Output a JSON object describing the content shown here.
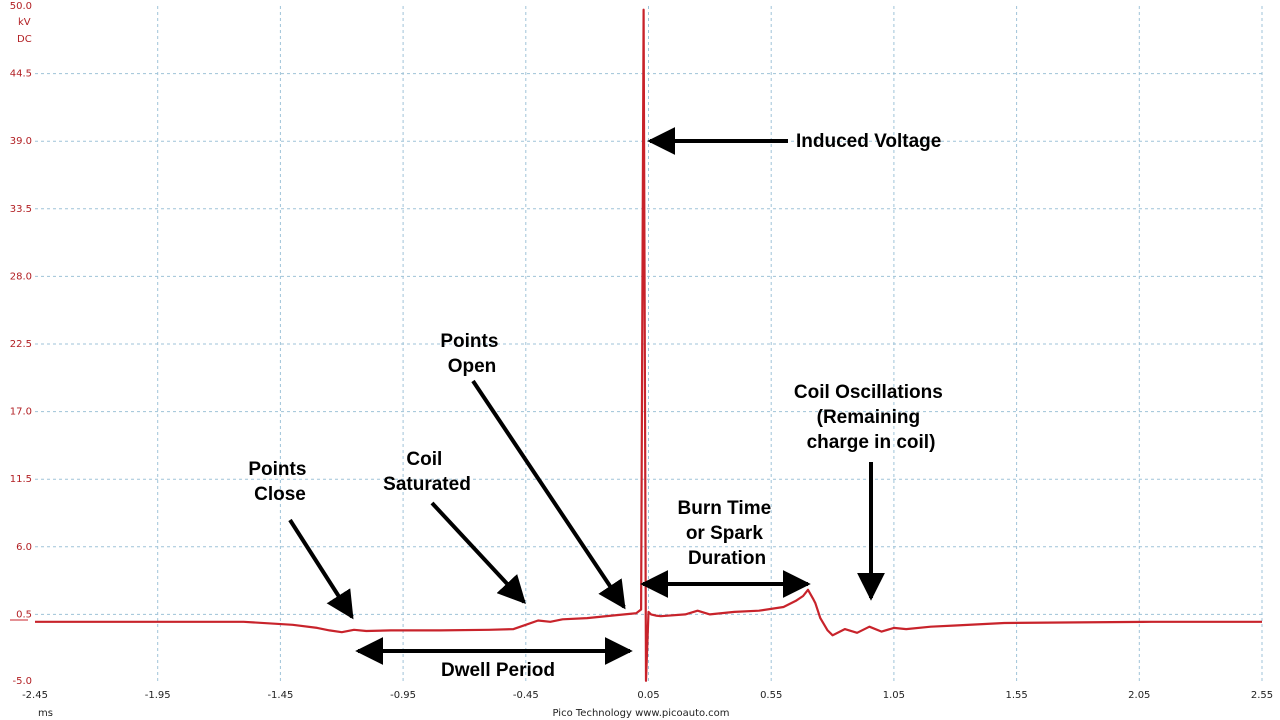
{
  "chart_data": {
    "type": "line",
    "title": "",
    "xlabel": "",
    "ylabel": "",
    "y_unit": "kV",
    "y_coupling": "DC",
    "x_unit": "ms",
    "xlim": [
      -2.45,
      2.55
    ],
    "ylim": [
      -5.0,
      50.0
    ],
    "x_ticks": [
      "-2.45",
      "-1.95",
      "-1.45",
      "-0.95",
      "-0.45",
      "0.05",
      "0.55",
      "1.05",
      "1.55",
      "2.05",
      "2.55"
    ],
    "y_ticks": [
      "50.0",
      "44.5",
      "39.0",
      "33.5",
      "28.0",
      "22.5",
      "17.0",
      "11.5",
      "6.0",
      "0.5",
      "-5.0"
    ],
    "grid": true,
    "line_color": "#c8232b",
    "series": [
      {
        "x": [
          -2.45,
          -2.0,
          -1.6,
          -1.4,
          -1.3,
          -1.25,
          -1.2,
          -1.15,
          -1.1,
          -1.0,
          -0.8,
          -0.6,
          -0.5,
          -0.45,
          -0.4,
          -0.35,
          -0.3,
          -0.2,
          -0.1,
          0.0,
          0.02,
          0.03,
          0.04,
          0.05,
          0.06,
          0.08,
          0.1,
          0.2,
          0.25,
          0.3,
          0.4,
          0.5,
          0.6,
          0.65,
          0.68,
          0.7,
          0.72,
          0.73,
          0.75,
          0.78,
          0.8,
          0.85,
          0.9,
          0.95,
          1.0,
          1.05,
          1.1,
          1.2,
          1.3,
          1.5,
          1.8,
          2.1,
          2.4,
          2.55
        ],
        "y": [
          -0.1,
          -0.1,
          -0.1,
          -0.35,
          -0.6,
          -0.8,
          -0.95,
          -0.75,
          -0.85,
          -0.8,
          -0.8,
          -0.75,
          -0.7,
          -0.35,
          0.0,
          -0.1,
          0.1,
          0.2,
          0.4,
          0.6,
          0.9,
          49.7,
          -4.9,
          0.7,
          0.5,
          0.4,
          0.35,
          0.5,
          0.8,
          0.5,
          0.7,
          0.8,
          1.1,
          1.6,
          2.0,
          2.5,
          1.8,
          1.4,
          0.2,
          -0.8,
          -1.2,
          -0.7,
          -1.0,
          -0.5,
          -0.9,
          -0.6,
          -0.7,
          -0.5,
          -0.4,
          -0.2,
          -0.15,
          -0.1,
          -0.1,
          -0.1
        ]
      }
    ],
    "annotations": [
      {
        "lines": [
          "Induced Voltage"
        ]
      },
      {
        "lines": [
          "Points",
          "Open"
        ]
      },
      {
        "lines": [
          "Coil Oscillations",
          "(Remaining",
          "charge in coil)"
        ]
      },
      {
        "lines": [
          "Points",
          "Close"
        ]
      },
      {
        "lines": [
          "Coil",
          "Saturated"
        ]
      },
      {
        "lines": [
          "Burn Time",
          "or Spark",
          "Duration"
        ]
      },
      {
        "lines": [
          "Dwell Period"
        ]
      }
    ],
    "footer": "Pico Technology  www.picoauto.com"
  }
}
